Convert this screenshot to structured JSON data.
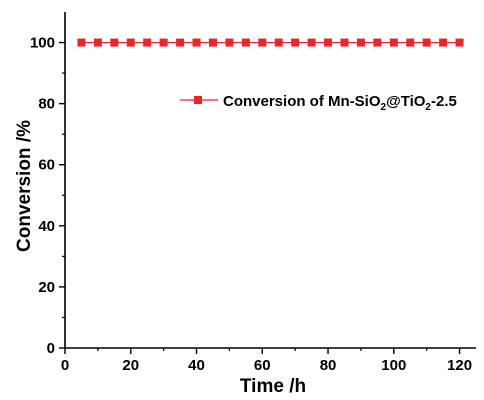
{
  "chart_data": {
    "type": "line",
    "title": "",
    "xlabel": "Time /h",
    "ylabel": "Conversion /%",
    "xlim": [
      0,
      125
    ],
    "ylim": [
      0,
      110
    ],
    "x_ticks": [
      0,
      20,
      40,
      60,
      80,
      100,
      120
    ],
    "x_tick_labels": [
      "0",
      "20",
      "40",
      "60",
      "80",
      "100",
      "120"
    ],
    "y_ticks": [
      0,
      20,
      40,
      60,
      80,
      100
    ],
    "y_tick_labels": [
      "0",
      "20",
      "40",
      "60",
      "80",
      "100"
    ],
    "grid": false,
    "legend_position": "upper-right",
    "series": [
      {
        "name": "Conversion of Mn-SiO2@TiO2-2.5",
        "marker": "square",
        "color": "#e8262b",
        "x": [
          5,
          10,
          15,
          20,
          25,
          30,
          35,
          40,
          45,
          50,
          55,
          60,
          65,
          70,
          75,
          80,
          85,
          90,
          95,
          100,
          105,
          110,
          115,
          120
        ],
        "y": [
          100,
          100,
          100,
          100,
          100,
          100,
          100,
          100,
          100,
          100,
          100,
          100,
          100,
          100,
          100,
          100,
          100,
          100,
          100,
          100,
          100,
          100,
          100,
          100
        ]
      }
    ],
    "legend": {
      "prefix": "Conversion of Mn-SiO",
      "sub1": "2",
      "mid": "@TiO",
      "sub2": "2",
      "suffix": "-2.5"
    }
  }
}
